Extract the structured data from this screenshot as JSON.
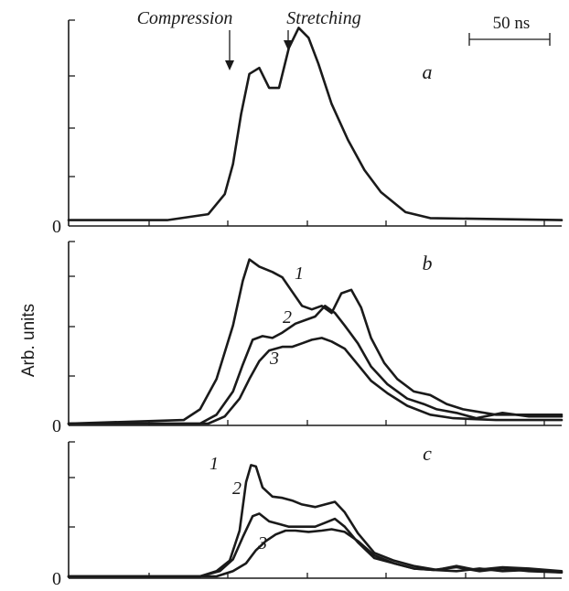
{
  "chart_data": {
    "type": "line",
    "ylabel": "Arb. units",
    "scale_bar_label": "50 ns",
    "annotations": [
      "Compression",
      "Stretching"
    ],
    "panels": [
      {
        "label": "a",
        "zero_label": "0",
        "series": [
          {
            "label": "",
            "points": [
              [
                0,
                0.02
              ],
              [
                60,
                0.02
              ],
              [
                85,
                0.05
              ],
              [
                95,
                0.15
              ],
              [
                100,
                0.3
              ],
              [
                105,
                0.55
              ],
              [
                110,
                0.75
              ],
              [
                116,
                0.78
              ],
              [
                122,
                0.68
              ],
              [
                128,
                0.68
              ],
              [
                134,
                0.88
              ],
              [
                140,
                0.98
              ],
              [
                146,
                0.93
              ],
              [
                152,
                0.8
              ],
              [
                160,
                0.6
              ],
              [
                170,
                0.42
              ],
              [
                180,
                0.27
              ],
              [
                190,
                0.16
              ],
              [
                205,
                0.06
              ],
              [
                220,
                0.03
              ],
              [
                300,
                0.02
              ]
            ]
          }
        ]
      },
      {
        "label": "b",
        "zero_label": "0",
        "series": [
          {
            "label": "1",
            "points": [
              [
                0,
                0
              ],
              [
                70,
                0.02
              ],
              [
                80,
                0.08
              ],
              [
                90,
                0.25
              ],
              [
                100,
                0.55
              ],
              [
                106,
                0.8
              ],
              [
                110,
                0.92
              ],
              [
                116,
                0.88
              ],
              [
                124,
                0.85
              ],
              [
                130,
                0.82
              ],
              [
                136,
                0.74
              ],
              [
                142,
                0.66
              ],
              [
                148,
                0.64
              ],
              [
                154,
                0.66
              ],
              [
                160,
                0.62
              ],
              [
                166,
                0.73
              ],
              [
                172,
                0.75
              ],
              [
                178,
                0.65
              ],
              [
                184,
                0.48
              ],
              [
                192,
                0.34
              ],
              [
                200,
                0.25
              ],
              [
                210,
                0.18
              ],
              [
                220,
                0.16
              ],
              [
                230,
                0.11
              ],
              [
                240,
                0.08
              ],
              [
                260,
                0.05
              ],
              [
                280,
                0.05
              ],
              [
                300,
                0.05
              ]
            ]
          },
          {
            "label": "2",
            "points": [
              [
                0,
                0
              ],
              [
                80,
                0
              ],
              [
                90,
                0.05
              ],
              [
                100,
                0.18
              ],
              [
                106,
                0.33
              ],
              [
                112,
                0.47
              ],
              [
                118,
                0.49
              ],
              [
                124,
                0.48
              ],
              [
                130,
                0.51
              ],
              [
                138,
                0.56
              ],
              [
                144,
                0.58
              ],
              [
                150,
                0.6
              ],
              [
                156,
                0.66
              ],
              [
                162,
                0.62
              ],
              [
                168,
                0.55
              ],
              [
                176,
                0.45
              ],
              [
                184,
                0.32
              ],
              [
                194,
                0.22
              ],
              [
                206,
                0.14
              ],
              [
                216,
                0.11
              ],
              [
                224,
                0.08
              ],
              [
                236,
                0.06
              ],
              [
                248,
                0.03
              ],
              [
                264,
                0.06
              ],
              [
                280,
                0.04
              ],
              [
                300,
                0.04
              ]
            ]
          },
          {
            "label": "3",
            "points": [
              [
                0,
                0
              ],
              [
                85,
                0
              ],
              [
                95,
                0.04
              ],
              [
                104,
                0.14
              ],
              [
                110,
                0.25
              ],
              [
                116,
                0.35
              ],
              [
                122,
                0.41
              ],
              [
                130,
                0.43
              ],
              [
                136,
                0.43
              ],
              [
                142,
                0.45
              ],
              [
                148,
                0.47
              ],
              [
                154,
                0.48
              ],
              [
                160,
                0.46
              ],
              [
                168,
                0.42
              ],
              [
                176,
                0.33
              ],
              [
                184,
                0.24
              ],
              [
                194,
                0.17
              ],
              [
                206,
                0.1
              ],
              [
                220,
                0.05
              ],
              [
                234,
                0.03
              ],
              [
                260,
                0.02
              ],
              [
                300,
                0.02
              ]
            ]
          }
        ]
      },
      {
        "label": "c",
        "zero_label": "0",
        "series": [
          {
            "label": "1",
            "points": [
              [
                0,
                0
              ],
              [
                80,
                0
              ],
              [
                90,
                0.04
              ],
              [
                98,
                0.12
              ],
              [
                104,
                0.35
              ],
              [
                108,
                0.72
              ],
              [
                111,
                0.85
              ],
              [
                114,
                0.84
              ],
              [
                118,
                0.68
              ],
              [
                124,
                0.61
              ],
              [
                130,
                0.6
              ],
              [
                136,
                0.58
              ],
              [
                142,
                0.55
              ],
              [
                150,
                0.53
              ],
              [
                156,
                0.55
              ],
              [
                162,
                0.57
              ],
              [
                168,
                0.49
              ],
              [
                176,
                0.33
              ],
              [
                186,
                0.18
              ],
              [
                198,
                0.12
              ],
              [
                210,
                0.08
              ],
              [
                224,
                0.05
              ],
              [
                236,
                0.08
              ],
              [
                248,
                0.05
              ],
              [
                264,
                0.07
              ],
              [
                280,
                0.06
              ],
              [
                300,
                0.04
              ]
            ]
          },
          {
            "label": "2",
            "points": [
              [
                0,
                0
              ],
              [
                80,
                0
              ],
              [
                92,
                0.04
              ],
              [
                100,
                0.13
              ],
              [
                106,
                0.3
              ],
              [
                112,
                0.46
              ],
              [
                116,
                0.48
              ],
              [
                122,
                0.42
              ],
              [
                128,
                0.4
              ],
              [
                134,
                0.38
              ],
              [
                142,
                0.38
              ],
              [
                150,
                0.38
              ],
              [
                156,
                0.41
              ],
              [
                162,
                0.44
              ],
              [
                168,
                0.38
              ],
              [
                176,
                0.26
              ],
              [
                186,
                0.14
              ],
              [
                198,
                0.1
              ],
              [
                210,
                0.06
              ],
              [
                222,
                0.05
              ],
              [
                236,
                0.07
              ],
              [
                250,
                0.04
              ],
              [
                264,
                0.06
              ],
              [
                280,
                0.04
              ],
              [
                300,
                0.03
              ]
            ]
          },
          {
            "label": "3",
            "points": [
              [
                0,
                0
              ],
              [
                90,
                0
              ],
              [
                100,
                0.04
              ],
              [
                108,
                0.1
              ],
              [
                114,
                0.2
              ],
              [
                120,
                0.27
              ],
              [
                126,
                0.32
              ],
              [
                132,
                0.35
              ],
              [
                138,
                0.35
              ],
              [
                146,
                0.34
              ],
              [
                154,
                0.35
              ],
              [
                160,
                0.36
              ],
              [
                168,
                0.34
              ],
              [
                176,
                0.27
              ],
              [
                186,
                0.16
              ],
              [
                198,
                0.1
              ],
              [
                210,
                0.06
              ],
              [
                222,
                0.05
              ],
              [
                236,
                0.04
              ],
              [
                250,
                0.06
              ],
              [
                264,
                0.04
              ],
              [
                280,
                0.05
              ],
              [
                300,
                0.03
              ]
            ]
          }
        ]
      }
    ]
  }
}
